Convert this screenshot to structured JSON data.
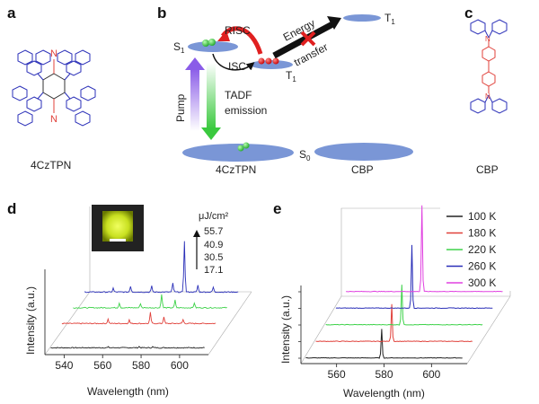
{
  "panels": {
    "a": {
      "label": "a",
      "caption": "4CzTPN",
      "atom_n": "N"
    },
    "b": {
      "label": "b",
      "s1": "S",
      "s1_sub": "1",
      "t1_top": "T",
      "t1_top_sub": "1",
      "t1": "T",
      "t1_sub": "1",
      "s0": "S",
      "s0_sub": "0",
      "risc": "RISC",
      "isc": "ISC",
      "energy": "Energy",
      "transfer": "transfer",
      "pump": "Pump",
      "tadf_line1": "TADF",
      "tadf_line2": "emission",
      "left_caption": "4CzTPN",
      "right_caption": "CBP"
    },
    "c": {
      "label": "c",
      "caption": "CBP",
      "atom_n": "N"
    },
    "d": {
      "label": "d",
      "legend_unit": "μJ/cm²",
      "legend_values": [
        "55.7",
        "40.9",
        "30.5",
        "17.1"
      ],
      "legend_arrow": "↑",
      "ylabel": "Intensity (a.u.)",
      "xlabel": "Wavelength (nm)"
    },
    "e": {
      "label": "e",
      "legend_entries": [
        "100 K",
        "180 K",
        "220 K",
        "260 K",
        "300 K"
      ],
      "ylabel": "Intensity (a.u.)",
      "xlabel": "Wavelength (nm)"
    }
  },
  "chart_data": [
    {
      "type": "line",
      "panel": "d",
      "title": "",
      "xlabel": "Wavelength (nm)",
      "ylabel": "Intensity (a.u.)",
      "xlim": [
        530,
        615
      ],
      "x_ticks": [
        540,
        560,
        580,
        600
      ],
      "legend_title": "μJ/cm²",
      "series": [
        {
          "name": "17.1",
          "color": "#222222",
          "offset": 0,
          "baseline": 0.05,
          "peaks": [
            {
              "x": 579,
              "h": 0.06
            },
            {
              "x": 586,
              "h": 0.05
            },
            {
              "x": 563,
              "h": 0.04
            }
          ]
        },
        {
          "name": "30.5",
          "color": "#e0403a",
          "offset": 1,
          "baseline": 0.12,
          "peaks": [
            {
              "x": 557,
              "h": 0.22
            },
            {
              "x": 568,
              "h": 0.18
            },
            {
              "x": 579,
              "h": 0.55
            },
            {
              "x": 586,
              "h": 0.35
            },
            {
              "x": 596,
              "h": 0.2
            }
          ]
        },
        {
          "name": "40.9",
          "color": "#3ed24a",
          "offset": 2,
          "baseline": 0.12,
          "peaks": [
            {
              "x": 557,
              "h": 0.25
            },
            {
              "x": 568,
              "h": 0.22
            },
            {
              "x": 579,
              "h": 0.7
            },
            {
              "x": 586,
              "h": 0.38
            },
            {
              "x": 596,
              "h": 0.25
            }
          ]
        },
        {
          "name": "55.7",
          "color": "#2a2fb8",
          "offset": 3,
          "baseline": 0.12,
          "peaks": [
            {
              "x": 548,
              "h": 0.2
            },
            {
              "x": 557,
              "h": 0.3
            },
            {
              "x": 568,
              "h": 0.3
            },
            {
              "x": 579,
              "h": 0.45
            },
            {
              "x": 585,
              "h": 2.6
            },
            {
              "x": 592,
              "h": 0.35
            },
            {
              "x": 600,
              "h": 0.25
            }
          ]
        }
      ]
    },
    {
      "type": "line",
      "panel": "e",
      "title": "",
      "xlabel": "Wavelength (nm)",
      "ylabel": "Intensity (a.u.)",
      "xlim": [
        545,
        615
      ],
      "x_ticks": [
        560,
        580,
        600
      ],
      "series": [
        {
          "name": "100 K",
          "color": "#222222",
          "offset": 0,
          "peak_x": 579,
          "peak_h": 1.0
        },
        {
          "name": "180 K",
          "color": "#e0403a",
          "offset": 1,
          "peak_x": 579,
          "peak_h": 1.3
        },
        {
          "name": "220 K",
          "color": "#3ed24a",
          "offset": 2,
          "peak_x": 579,
          "peak_h": 1.4
        },
        {
          "name": "260 K",
          "color": "#2a2fb8",
          "offset": 3,
          "peak_x": 579,
          "peak_h": 2.2
        },
        {
          "name": "300 K",
          "color": "#e040e0",
          "offset": 4,
          "peak_x": 579,
          "peak_h": 3.0
        }
      ]
    }
  ]
}
